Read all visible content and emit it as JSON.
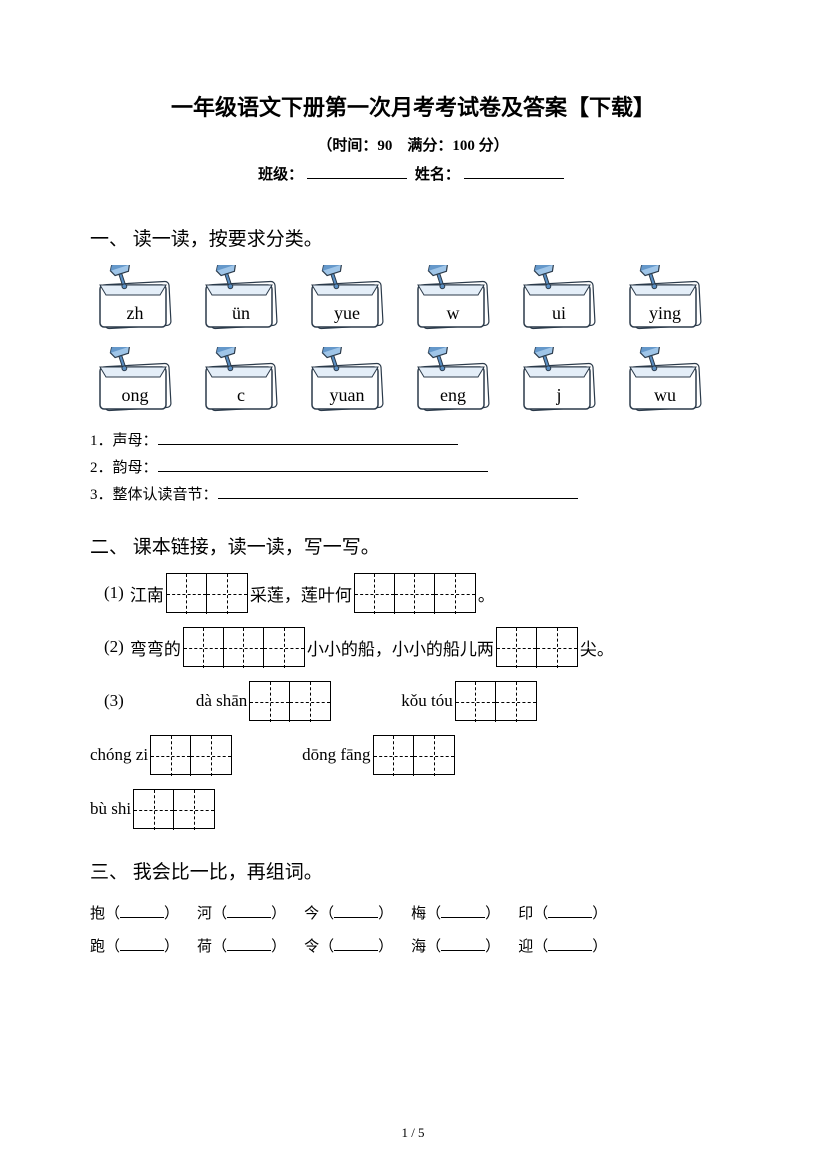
{
  "colors": {
    "card_stroke": "#2b3a4a",
    "card_fill_top": "#9fc5e8",
    "card_fill_light": "#e4eef8",
    "pin_fill": "#5a8fc4",
    "text": "#000000",
    "bg": "#ffffff"
  },
  "header": {
    "title": "一年级语文下册第一次月考考试卷及答案【下载】",
    "subtitle": "（时间：90　满分：100 分）",
    "class_label": "班级：",
    "name_label": "姓名："
  },
  "section1": {
    "heading": "一、 读一读，按要求分类。",
    "row1": [
      "zh",
      "ün",
      "yue",
      "w",
      "ui",
      "ying"
    ],
    "row2": [
      "ong",
      "c",
      "yuan",
      "eng",
      "j",
      "wu"
    ],
    "q1": "1．声母：",
    "q2": "2．韵母：",
    "q3": "3．整体认读音节：",
    "blank1_width": 300,
    "blank2_width": 330,
    "blank3_width": 360
  },
  "section2": {
    "heading": "二、 课本链接，读一读，写一写。",
    "rows": [
      {
        "type": "mixed",
        "label": "(1)",
        "parts": [
          {
            "t": "text",
            "v": "江南"
          },
          {
            "t": "box",
            "n": 2
          },
          {
            "t": "text",
            "v": "采莲，莲叶何"
          },
          {
            "t": "box",
            "n": 3
          },
          {
            "t": "text",
            "v": "。"
          }
        ]
      },
      {
        "type": "mixed",
        "label": "(2)",
        "parts": [
          {
            "t": "text",
            "v": "弯弯的"
          },
          {
            "t": "box",
            "n": 3
          },
          {
            "t": "text",
            "v": "小小的船，小小的船儿两"
          },
          {
            "t": "box",
            "n": 2
          },
          {
            "t": "text",
            "v": "尖。"
          }
        ]
      },
      {
        "type": "pair",
        "label": "(3)",
        "items": [
          {
            "py": "dà shān",
            "n": 2
          },
          {
            "py": "kǒu tóu",
            "n": 2
          }
        ]
      },
      {
        "type": "pair",
        "label": "",
        "items": [
          {
            "py": "chóng zi",
            "n": 2
          },
          {
            "py": "dōng fāng",
            "n": 2
          }
        ]
      },
      {
        "type": "pair",
        "label": "",
        "items": [
          {
            "py": "bù shi",
            "n": 2
          }
        ]
      }
    ]
  },
  "section3": {
    "heading": "三、 我会比一比，再组词。",
    "rows": [
      [
        "抱",
        "河",
        "今",
        "梅",
        "印"
      ],
      [
        "跑",
        "荷",
        "令",
        "海",
        "迎"
      ]
    ]
  },
  "footer": {
    "page": "1 / 5"
  }
}
